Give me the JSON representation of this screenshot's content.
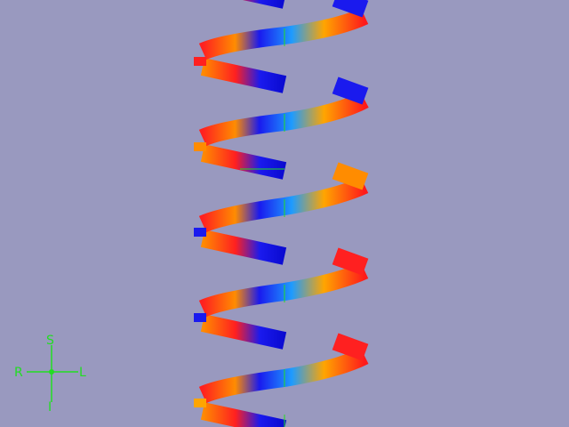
{
  "viewer": {
    "background": "#9999bf",
    "orientation_widget": {
      "color": "#22dd22",
      "labels": {
        "superior": "S",
        "inferior": "I",
        "right": "R",
        "left": "L"
      }
    }
  },
  "helix": {
    "turns_visible": 5,
    "band_colors": [
      "#ff1a1a",
      "#ff8c00",
      "#ffa500",
      "#1a1aee",
      "#0a0ad0",
      "#1e9bff",
      "#00c8ff"
    ],
    "axis_line_color": "#22dd22"
  }
}
